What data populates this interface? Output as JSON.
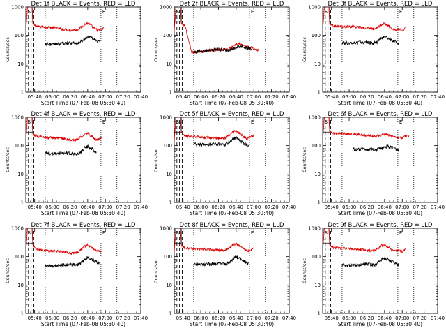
{
  "chart_data": {
    "type": "line",
    "layout": "3x3 grid",
    "shared": {
      "ylabel": "Counts/sec",
      "y_scale": "log",
      "ylim": [
        1,
        1000
      ],
      "y_ticks": [
        1,
        10,
        100,
        1000
      ],
      "y_tick_labels": [
        "1",
        "10",
        "100",
        "1000"
      ],
      "x_unit": "minutes after 05:30",
      "xlim": [
        0,
        130
      ],
      "x_ticks": [
        10,
        30,
        50,
        70,
        90,
        110,
        130
      ],
      "x_tick_labels": [
        "05:40",
        "06:00",
        "06:20",
        "06:40",
        "07:00",
        "07:20",
        "07:40"
      ],
      "xlabel": "Start Time (07-Feb-08 05:30:40)",
      "grid": false,
      "series_colors": {
        "events": "#000000",
        "lld": "#dd0000"
      },
      "markers": {
        "S_label": "S",
        "E_label": "E",
        "S_time": 2,
        "E_time": 85,
        "dotted_times": [
          22,
          85,
          103
        ],
        "dashed_times": [
          3,
          6,
          9
        ]
      },
      "flare_peak": {
        "start": 0,
        "peak_start": 2,
        "peak_end": 7,
        "end": 8,
        "peak_rate": 1050
      }
    },
    "panels": [
      {
        "title": "Det 1f BLACK = Events, RED = LLD",
        "events": {
          "x": [
            22,
            30,
            40,
            50,
            58,
            62,
            66,
            70,
            74,
            78,
            82,
            84
          ],
          "y": [
            50,
            48,
            52,
            55,
            52,
            58,
            75,
            90,
            80,
            70,
            62,
            58
          ]
        },
        "lld": {
          "x": [
            8,
            12,
            20,
            30,
            40,
            50,
            58,
            62,
            66,
            70,
            74,
            78,
            82,
            86,
            88
          ],
          "y": [
            250,
            210,
            200,
            190,
            170,
            150,
            160,
            190,
            240,
            270,
            220,
            170,
            150,
            160,
            180
          ]
        }
      },
      {
        "title": "Det 2f BLACK = Events, RED = LLD",
        "events": {
          "x": [
            22,
            30,
            40,
            50,
            60,
            66,
            70,
            74,
            78,
            84,
            88
          ],
          "y": [
            27,
            28,
            30,
            32,
            30,
            34,
            38,
            42,
            40,
            36,
            34
          ]
        },
        "lld": {
          "x": [
            8,
            12,
            20,
            30,
            40,
            50,
            60,
            66,
            70,
            74,
            78,
            84,
            88,
            92,
            96
          ],
          "y": [
            260,
            220,
            25,
            27,
            30,
            32,
            32,
            40,
            48,
            50,
            44,
            38,
            36,
            32,
            30
          ]
        }
      },
      {
        "title": "Det 3f BLACK = Events, RED = LLD",
        "events": {
          "x": [
            22,
            30,
            40,
            50,
            58,
            62,
            66,
            70,
            74,
            78,
            82,
            86
          ],
          "y": [
            55,
            52,
            55,
            58,
            52,
            60,
            75,
            95,
            80,
            70,
            62,
            50
          ]
        },
        "lld": {
          "x": [
            8,
            12,
            20,
            30,
            40,
            50,
            58,
            62,
            66,
            70,
            74,
            78,
            82,
            86,
            90,
            94
          ],
          "y": [
            260,
            220,
            210,
            200,
            200,
            180,
            170,
            190,
            240,
            260,
            220,
            180,
            160,
            170,
            150,
            190
          ]
        }
      },
      {
        "title": "Det 4f BLACK = Events, RED = LLD",
        "events": {
          "x": [
            22,
            30,
            40,
            50,
            58,
            62,
            66,
            70,
            74,
            78,
            80
          ],
          "y": [
            55,
            52,
            55,
            55,
            50,
            58,
            80,
            95,
            80,
            65,
            60
          ]
        },
        "lld": {
          "x": [
            8,
            12,
            20,
            30,
            40,
            50,
            58,
            62,
            66,
            70,
            74,
            78,
            82,
            86
          ],
          "y": [
            250,
            220,
            200,
            190,
            180,
            160,
            160,
            200,
            250,
            280,
            220,
            170,
            160,
            190
          ]
        }
      },
      {
        "title": "Det 5f BLACK = Events, RED = LLD",
        "events": {
          "x": [
            22,
            30,
            40,
            50,
            58,
            62,
            66,
            70,
            74,
            78,
            82,
            84
          ],
          "y": [
            120,
            110,
            110,
            115,
            110,
            130,
            170,
            195,
            160,
            130,
            110,
            100
          ]
        },
        "lld": {
          "x": [
            8,
            12,
            20,
            30,
            40,
            50,
            58,
            62,
            66,
            70,
            74,
            78,
            82,
            86,
            90
          ],
          "y": [
            300,
            220,
            210,
            200,
            190,
            180,
            190,
            240,
            310,
            330,
            270,
            210,
            180,
            200,
            230
          ]
        }
      },
      {
        "title": "Det 6f BLACK = Events, RED = LLD",
        "events": {
          "x": [
            34,
            40,
            50,
            58,
            62,
            66,
            70,
            74,
            78,
            82,
            86
          ],
          "y": [
            75,
            72,
            75,
            72,
            72,
            78,
            88,
            95,
            85,
            78,
            70
          ]
        },
        "lld": {
          "x": [
            8,
            12,
            20,
            30,
            40,
            50,
            58,
            62,
            66,
            70,
            74,
            78,
            82,
            86,
            90,
            94,
            98
          ],
          "y": [
            320,
            280,
            270,
            260,
            250,
            230,
            210,
            220,
            240,
            260,
            240,
            210,
            190,
            200,
            190,
            210,
            230
          ]
        }
      },
      {
        "title": "Det 7f BLACK = Events, RED = LLD",
        "events": {
          "x": [
            22,
            30,
            40,
            50,
            58,
            62,
            66,
            70,
            74,
            78,
            82,
            84
          ],
          "y": [
            50,
            48,
            52,
            55,
            52,
            58,
            75,
            95,
            80,
            70,
            60,
            55
          ]
        },
        "lld": {
          "x": [
            8,
            12,
            20,
            30,
            40,
            50,
            58,
            62,
            66,
            70,
            74,
            78,
            82,
            86
          ],
          "y": [
            260,
            180,
            170,
            160,
            150,
            130,
            140,
            170,
            230,
            260,
            220,
            170,
            150,
            160
          ]
        }
      },
      {
        "title": "Det 8f BLACK = Events, RED = LLD",
        "events": {
          "x": [
            22,
            30,
            40,
            50,
            58,
            62,
            66,
            70,
            74,
            78,
            80,
            84
          ],
          "y": [
            55,
            52,
            55,
            58,
            55,
            62,
            80,
            100,
            85,
            70,
            65,
            60
          ]
        },
        "lld": {
          "x": [
            8,
            12,
            20,
            30,
            40,
            50,
            58,
            62,
            66,
            70,
            74,
            78,
            82,
            86,
            90
          ],
          "y": [
            260,
            200,
            190,
            180,
            180,
            170,
            170,
            200,
            260,
            290,
            240,
            190,
            160,
            170,
            190
          ]
        }
      },
      {
        "title": "Det 9f BLACK = Events, RED = LLD",
        "events": {
          "x": [
            22,
            30,
            40,
            50,
            58,
            62,
            66,
            70,
            74,
            78,
            82,
            86
          ],
          "y": [
            50,
            48,
            52,
            55,
            50,
            58,
            75,
            90,
            80,
            70,
            62,
            50
          ]
        },
        "lld": {
          "x": [
            8,
            12,
            20,
            30,
            40,
            50,
            58,
            62,
            66,
            70,
            74,
            78,
            82,
            86,
            90,
            94
          ],
          "y": [
            260,
            210,
            200,
            190,
            180,
            170,
            160,
            190,
            240,
            260,
            220,
            180,
            160,
            170,
            150,
            190
          ]
        }
      }
    ]
  }
}
